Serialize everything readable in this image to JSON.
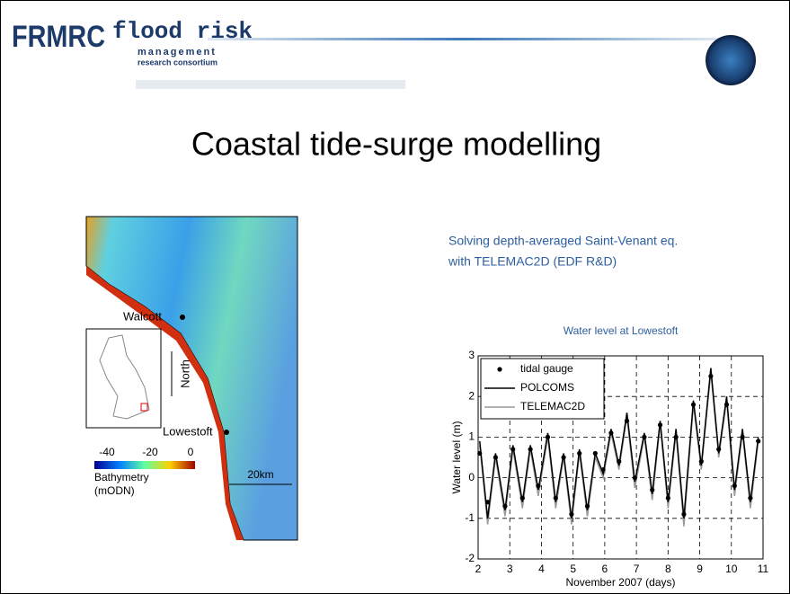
{
  "header": {
    "logo": "FRMRC",
    "brand": "flood risk",
    "brand_sub1": "management",
    "brand_sub2": "research consortium"
  },
  "title": "Coastal tide-surge modelling",
  "description": [
    "Solving depth-averaged Saint-Venant eq.",
    "with TELEMAC2D (EDF R&D)"
  ],
  "map": {
    "labels": [
      "Walcott",
      "North",
      "Lowestoft"
    ],
    "colorbar_labels": [
      "-40",
      "-20",
      "0"
    ],
    "colorbar_title": [
      "Bathymetry",
      "(mODN)"
    ],
    "scale": "20km"
  },
  "chart_data": {
    "type": "line",
    "title": "Water level at Lowestoft",
    "x_label": "November 2007 (days)",
    "y_label": "Water level (m)",
    "x": [
      2.05,
      2.3,
      2.55,
      2.85,
      3.1,
      3.4,
      3.65,
      3.9,
      4.2,
      4.45,
      4.7,
      4.95,
      5.2,
      5.45,
      5.7,
      5.95,
      6.2,
      6.45,
      6.7,
      6.95,
      7.25,
      7.5,
      7.75,
      8.0,
      8.25,
      8.5,
      8.8,
      9.05,
      9.35,
      9.6,
      9.85,
      10.1,
      10.35,
      10.6,
      10.85
    ],
    "series": [
      {
        "name": "tidal gauge",
        "color": "#000000",
        "style": "points",
        "values": [
          0.6,
          -0.6,
          0.5,
          -0.7,
          0.7,
          -0.5,
          0.7,
          -0.2,
          1.0,
          -0.5,
          0.5,
          -0.9,
          0.6,
          -0.7,
          0.6,
          0.2,
          1.1,
          0.4,
          1.4,
          0.0,
          1.0,
          -0.3,
          1.3,
          -0.5,
          1.0,
          -0.9,
          1.8,
          0.4,
          2.5,
          0.7,
          1.8,
          -0.2,
          1.0,
          -0.5,
          0.9
        ]
      },
      {
        "name": "POLCOMS",
        "color": "#000000",
        "style": "line",
        "values": [
          0.9,
          -1.0,
          0.6,
          -0.8,
          0.8,
          -0.6,
          0.8,
          -0.3,
          1.1,
          -0.6,
          0.6,
          -1.0,
          0.7,
          -0.8,
          0.6,
          0.1,
          1.2,
          0.3,
          1.6,
          -0.1,
          1.1,
          -0.4,
          1.4,
          -0.6,
          1.2,
          -1.0,
          1.9,
          0.3,
          2.7,
          0.6,
          2.0,
          -0.3,
          1.2,
          -0.6,
          1.0
        ]
      },
      {
        "name": "TELEMAC2D",
        "color": "#999999",
        "style": "line",
        "values": [
          0.8,
          -1.15,
          0.5,
          -0.95,
          0.7,
          -0.75,
          0.7,
          -0.45,
          1.0,
          -0.75,
          0.5,
          -1.15,
          0.6,
          -0.95,
          0.5,
          0.0,
          1.1,
          0.2,
          1.5,
          -0.25,
          1.0,
          -0.55,
          1.3,
          -0.75,
          1.1,
          -1.2,
          1.8,
          0.2,
          2.6,
          0.5,
          1.9,
          -0.45,
          1.1,
          -0.75,
          0.9
        ]
      }
    ],
    "xlim": [
      2,
      11
    ],
    "ylim": [
      -2,
      3
    ],
    "xticks": [
      2,
      3,
      4,
      5,
      6,
      7,
      8,
      9,
      10,
      11
    ],
    "yticks": [
      -2,
      -1,
      0,
      1,
      2,
      3
    ],
    "grid": true,
    "legend": "upper left"
  }
}
